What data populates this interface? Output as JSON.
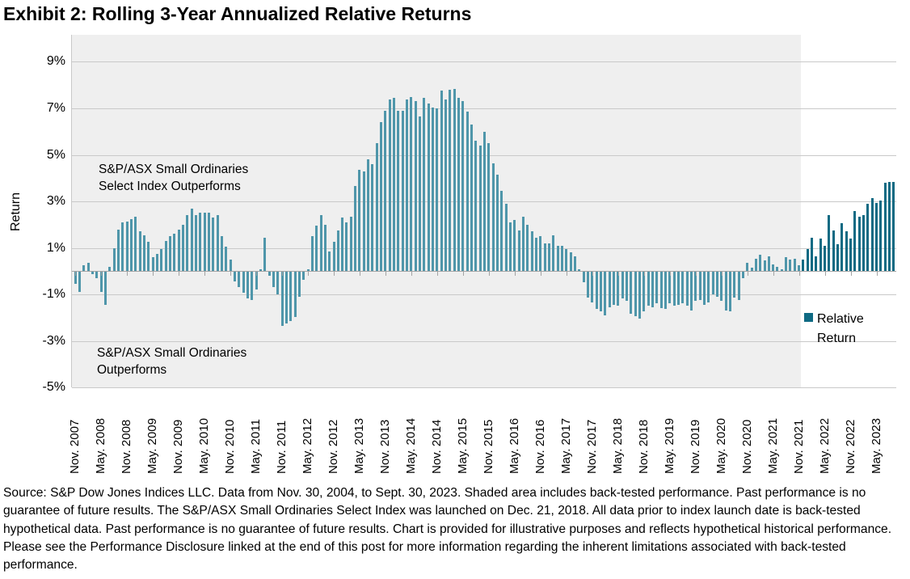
{
  "title": "Exhibit 2: Rolling 3-Year Annualized Relative Returns",
  "source_note": "Source: S&P Dow Jones Indices LLC. Data from Nov. 30, 2004, to Sept. 30, 2023. Shaded area includes back-tested performance. Past performance is no guarantee of future results. The S&P/ASX Small Ordinaries Select Index was launched on Dec. 21, 2018. All data prior to index launch date is back-tested hypothetical data. Past performance is no guarantee of future results. Chart is provided for illustrative purposes and reflects hypothetical historical performance. Please see the Performance Disclosure linked at the end of this post for more information regarding the inherent limitations associated with back-tested performance.",
  "colors": {
    "bar_live": "#0f6a83",
    "bar_backtested": "#4f96aa",
    "shaded_bg": "#efefef",
    "gridline": "#c9c9c9",
    "axis_line": "#a3a3a3",
    "text": "#000000"
  },
  "chart_data": {
    "type": "bar",
    "title": "Rolling 3-Year Annualized Relative Returns",
    "xlabel": "",
    "ylabel": "Return",
    "ylim": [
      -5,
      10.2
    ],
    "grid": true,
    "legend_label": "Relative Return",
    "legend_position": "right",
    "ytick_values": [
      9,
      7,
      5,
      3,
      1,
      -1,
      -3,
      -5
    ],
    "ytick_labels": [
      "9%",
      "7%",
      "5%",
      "3%",
      "1%",
      "-1%",
      "-3%",
      "-5%"
    ],
    "x_start_month": "Nov. 2007",
    "x_end_month": "Sept. 2023",
    "xticks_every_months": 6,
    "xtick_labels": [
      "Nov. 2007",
      "May. 2008",
      "Nov. 2008",
      "May. 2009",
      "Nov. 2009",
      "May. 2010",
      "Nov. 2010",
      "May. 2011",
      "Nov. 2011",
      "May. 2012",
      "Nov. 2012",
      "May. 2013",
      "Nov. 2013",
      "May. 2014",
      "Nov. 2014",
      "May. 2015",
      "Nov. 2015",
      "May. 2016",
      "Nov. 2016",
      "May. 2017",
      "Nov. 2017",
      "May. 2018",
      "Nov. 2018",
      "May. 2019",
      "Nov. 2019",
      "May. 2020",
      "Nov. 2020",
      "May. 2021",
      "Nov. 2021",
      "May. 2022",
      "Nov. 2022",
      "May. 2023"
    ],
    "annotations": {
      "upper": "S&P/ASX Small Ordinaries\nSelect Index Outperforms",
      "lower": "S&P/ASX Small Ordinaries\nOutperforms"
    },
    "backtested_shading": {
      "description": "Shaded area includes back-tested performance",
      "last_shaded_index": 168,
      "last_shaded_month": "Nov. 2021"
    },
    "series": [
      {
        "name": "Relative Return",
        "unit": "%",
        "values": [
          -0.5,
          -0.85,
          0.25,
          0.35,
          -0.1,
          -0.25,
          -0.85,
          -1.4,
          0.2,
          1.0,
          1.8,
          2.1,
          2.15,
          2.25,
          2.35,
          1.7,
          1.55,
          1.25,
          0.6,
          0.75,
          0.95,
          1.3,
          1.5,
          1.6,
          1.8,
          2.0,
          2.4,
          2.7,
          2.4,
          2.5,
          2.5,
          2.5,
          2.3,
          2.4,
          1.5,
          1.05,
          0.5,
          -0.4,
          -0.65,
          -0.9,
          -1.15,
          -1.2,
          -0.75,
          0.1,
          1.45,
          -0.15,
          -0.65,
          -0.95,
          -2.3,
          -2.2,
          -2.1,
          -1.95,
          -1.05,
          -0.35,
          0.1,
          1.5,
          1.95,
          2.4,
          2.0,
          0.85,
          1.25,
          1.75,
          2.3,
          2.1,
          2.35,
          3.65,
          4.35,
          4.3,
          4.8,
          4.6,
          5.5,
          6.4,
          6.9,
          7.4,
          7.45,
          6.9,
          6.9,
          7.4,
          7.5,
          7.3,
          6.65,
          7.45,
          7.2,
          7.05,
          7.0,
          7.75,
          7.4,
          7.8,
          7.85,
          7.45,
          7.3,
          6.85,
          6.3,
          5.6,
          5.4,
          6.0,
          5.5,
          4.65,
          4.15,
          3.45,
          2.9,
          2.1,
          2.2,
          1.75,
          2.35,
          2.0,
          1.7,
          1.45,
          1.5,
          1.2,
          1.2,
          1.55,
          1.1,
          1.1,
          0.95,
          0.8,
          0.65,
          0.1,
          -0.45,
          -1.1,
          -1.3,
          -1.6,
          -1.7,
          -1.85,
          -1.5,
          -1.4,
          -1.45,
          -1.15,
          -1.25,
          -1.8,
          -1.9,
          -2.0,
          -1.7,
          -1.45,
          -1.5,
          -1.35,
          -1.55,
          -1.6,
          -1.35,
          -1.45,
          -1.4,
          -1.35,
          -1.45,
          -1.65,
          -1.25,
          -1.2,
          -1.4,
          -1.3,
          -0.95,
          -1.05,
          -1.25,
          -1.65,
          -1.7,
          -1.1,
          -1.2,
          -0.25,
          0.35,
          0.15,
          0.55,
          0.7,
          0.45,
          0.65,
          0.3,
          0.2,
          0.1,
          0.6,
          0.5,
          0.55,
          0.25,
          0.5,
          0.95,
          1.45,
          0.65,
          1.4,
          1.1,
          2.4,
          1.75,
          1.15,
          2.05,
          1.7,
          1.4,
          2.6,
          2.35,
          2.4,
          2.9,
          3.15,
          2.95,
          3.05,
          3.8,
          3.85,
          3.85
        ]
      }
    ]
  }
}
